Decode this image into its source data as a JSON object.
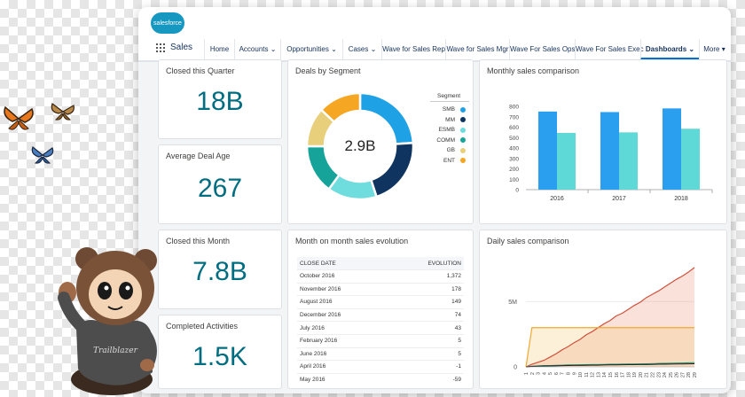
{
  "brand": {
    "logo_text": "salesforce",
    "app_name": "Sales"
  },
  "nav": {
    "items": [
      "Home",
      "Accounts",
      "Opportunities",
      "Cases",
      "Wave for Sales Rep",
      "Wave for Sales Mgr",
      "Wave For Sales Ops",
      "Wave For Sales Exec",
      "Dashboards",
      "More"
    ],
    "active": "Dashboards"
  },
  "cards": {
    "closed_quarter": {
      "title": "Closed this Quarter",
      "value": "18B"
    },
    "avg_deal_age": {
      "title": "Average Deal Age",
      "value": "267"
    },
    "closed_month": {
      "title": "Closed this Month",
      "value": "7.8B"
    },
    "completed": {
      "title": "Completed Activities",
      "value": "1.5K"
    }
  },
  "deals_segment": {
    "title": "Deals by Segment",
    "center_value": "2.9B",
    "legend_title": "Segment",
    "segments": [
      {
        "name": "SMB",
        "color": "#1fa1e5",
        "value": 24
      },
      {
        "name": "MM",
        "color": "#0f3460",
        "value": 21
      },
      {
        "name": "ESMB",
        "color": "#6fdcdd",
        "value": 15
      },
      {
        "name": "COMM",
        "color": "#16a39a",
        "value": 15
      },
      {
        "name": "GB",
        "color": "#e8cf7b",
        "value": 12
      },
      {
        "name": "ENT",
        "color": "#f5a623",
        "value": 13
      }
    ]
  },
  "monthly": {
    "title": "Monthly sales comparison",
    "chart_data": {
      "type": "bar",
      "categories": [
        "2016",
        "2017",
        "2018"
      ],
      "series": [
        {
          "values": [
            750,
            745,
            780
          ],
          "color": "#2a9ff0"
        },
        {
          "values": [
            545,
            550,
            585
          ],
          "color": "#5fd9d7"
        }
      ],
      "ylim": [
        0,
        800
      ],
      "yticks": [
        "0",
        "100",
        "200",
        "300",
        "400",
        "500",
        "600",
        "700",
        "800"
      ]
    }
  },
  "mom": {
    "title": "Month on month sales evolution",
    "columns": [
      "CLOSE DATE",
      "EVOLUTION"
    ],
    "rows": [
      [
        "October 2016",
        "1,372"
      ],
      [
        "November 2016",
        "178"
      ],
      [
        "August 2016",
        "149"
      ],
      [
        "December 2016",
        "74"
      ],
      [
        "July 2016",
        "43"
      ],
      [
        "February 2016",
        "5"
      ],
      [
        "June 2016",
        "5"
      ],
      [
        "April 2016",
        "-1"
      ],
      [
        "May 2016",
        "-59"
      ]
    ]
  },
  "daily": {
    "title": "Daily sales comparison",
    "chart_data": {
      "type": "area",
      "yticks": [
        "5M",
        "0"
      ],
      "x": [
        1,
        2,
        3,
        4,
        5,
        6,
        7,
        8,
        9,
        10,
        11,
        12,
        13,
        14,
        15,
        16,
        17,
        18,
        19,
        20,
        21,
        22,
        23,
        24,
        25,
        26,
        27,
        28,
        29
      ],
      "series": [
        {
          "color": "#d0503c",
          "values": [
            0.0,
            0.2,
            0.35,
            0.5,
            0.75,
            1.0,
            1.3,
            1.55,
            1.85,
            2.1,
            2.45,
            2.7,
            3.0,
            3.3,
            3.55,
            3.9,
            4.1,
            4.4,
            4.7,
            4.95,
            5.3,
            5.55,
            5.8,
            6.1,
            6.4,
            6.7,
            6.95,
            7.25,
            7.6
          ]
        },
        {
          "color": "#f0a830",
          "values": [
            0.0,
            3.0,
            3.0,
            3.0,
            3.0,
            3.0,
            3.0,
            3.0,
            3.0,
            3.0,
            3.0,
            3.0,
            3.0,
            3.0,
            3.0,
            3.0,
            3.0,
            3.0,
            3.0,
            3.0,
            3.0,
            3.0,
            3.0,
            3.0,
            3.0,
            3.0,
            3.0,
            3.0,
            3.0
          ]
        },
        {
          "color": "#1a8a6b",
          "values": [
            0.0,
            0.05,
            0.08,
            0.1,
            0.1,
            0.12,
            0.13,
            0.15,
            0.15,
            0.16,
            0.17,
            0.18,
            0.18,
            0.19,
            0.2,
            0.2,
            0.21,
            0.22,
            0.22,
            0.23,
            0.24,
            0.25,
            0.26,
            0.27,
            0.28,
            0.29,
            0.3,
            0.31,
            0.32
          ]
        },
        {
          "color": "#222222",
          "values": [
            0.0,
            0.03,
            0.05,
            0.06,
            0.07,
            0.08,
            0.09,
            0.1,
            0.11,
            0.11,
            0.12,
            0.13,
            0.13,
            0.14,
            0.15,
            0.15,
            0.16,
            0.17,
            0.17,
            0.18,
            0.18,
            0.19,
            0.2,
            0.2,
            0.21,
            0.22,
            0.22,
            0.23,
            0.24
          ]
        }
      ]
    }
  },
  "mascot": {
    "shirt_text": "Trailblazer"
  }
}
